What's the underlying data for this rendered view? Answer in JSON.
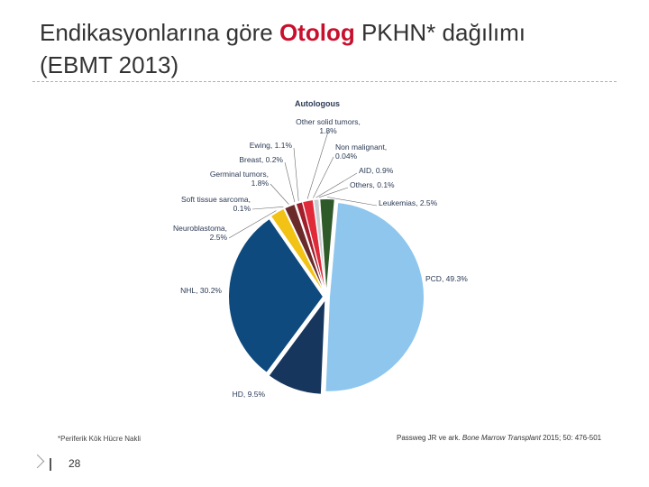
{
  "slide": {
    "title_prefix": "Endikasyonlarına göre ",
    "title_accent": "Otolog",
    "title_suffix": " PKHN* dağılımı",
    "title_line2": "(EBMT 2013)",
    "footnote": "*Periferik Kök Hücre Nakli",
    "citation_authors": "Passweg JR ve ark. ",
    "citation_journal": "Bone Marrow Transplant",
    "citation_rest": " 2015; 50: 476-501",
    "page_number": "28"
  },
  "chart_data": {
    "type": "pie",
    "title": "Autologous",
    "unit": "%",
    "slices": [
      {
        "label": "PCD, 49.3%",
        "value": 49.3,
        "color": "#8ec6ee"
      },
      {
        "label": "HD, 9.5%",
        "value": 9.5,
        "color": "#17365d"
      },
      {
        "label": "NHL, 30.2%",
        "value": 30.2,
        "color": "#0e4a7e"
      },
      {
        "label": "Neuroblastoma, 2.5%",
        "value": 2.5,
        "color": "#f2c314"
      },
      {
        "label": "Soft tissue sarcoma, 0.1%",
        "value": 0.1,
        "color": "#e08a1e"
      },
      {
        "label": "Germinal tumors, 1.8%",
        "value": 1.8,
        "color": "#6b2a2a"
      },
      {
        "label": "Breast, 0.2%",
        "value": 0.2,
        "color": "#c7b6b6"
      },
      {
        "label": "Ewing, 1.1%",
        "value": 1.1,
        "color": "#a11e2b"
      },
      {
        "label": "Other solid tumors, 1.8%",
        "value": 1.8,
        "color": "#e02a3a"
      },
      {
        "label": "Non malignant, 0.04%",
        "value": 0.04,
        "color": "#9aa0a6"
      },
      {
        "label": "AID, 0.9%",
        "value": 0.9,
        "color": "#c9ccd0"
      },
      {
        "label": "Others, 0.1%",
        "value": 0.1,
        "color": "#7b7b7b"
      },
      {
        "label": "Leukemias, 2.5%",
        "value": 2.5,
        "color": "#2e5a2a"
      }
    ]
  }
}
